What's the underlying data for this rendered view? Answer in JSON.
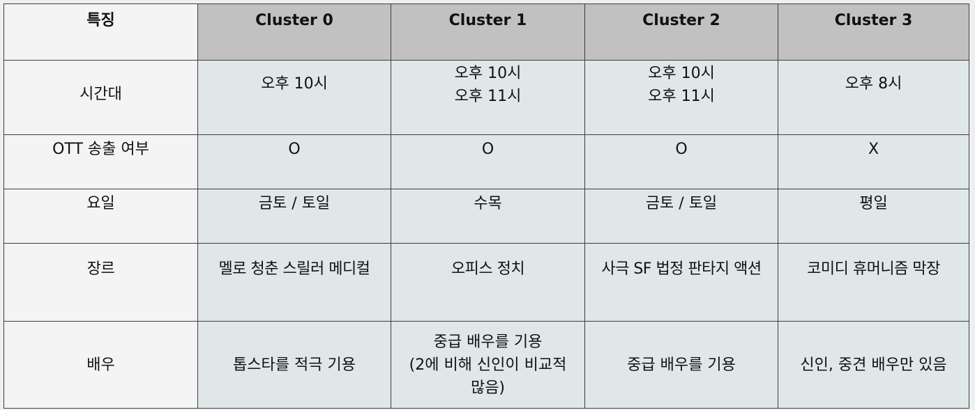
{
  "header": {
    "feature": "특징",
    "clusters": [
      "Cluster 0",
      "Cluster 1",
      "Cluster 2",
      "Cluster 3"
    ]
  },
  "rows": [
    {
      "label": "시간대",
      "cells": [
        [
          "오후 10시"
        ],
        [
          "오후 10시",
          "오후 11시"
        ],
        [
          "오후 10시",
          "오후 11시"
        ],
        [
          "오후 8시"
        ]
      ]
    },
    {
      "label": "OTT 송출 여부",
      "cells": [
        [
          "O"
        ],
        [
          "O"
        ],
        [
          "O"
        ],
        [
          "X"
        ]
      ]
    },
    {
      "label": "요일",
      "cells": [
        [
          "금토 / 토일"
        ],
        [
          "수목"
        ],
        [
          "금토 / 토일"
        ],
        [
          "평일"
        ]
      ]
    },
    {
      "label": "장르",
      "cells": [
        [
          "멜로 청춘 스릴러 메디컬"
        ],
        [
          "오피스 정치"
        ],
        [
          "사극 SF 법정 판타지 액션"
        ],
        [
          "코미디 휴머니즘 막장"
        ]
      ]
    },
    {
      "label": "배우",
      "cells": [
        [
          "톱스타를 적극 기용"
        ],
        [
          "중급 배우를 기용",
          "(2에 비해 신인이 비교적",
          "많음)"
        ],
        [
          "중급 배우를 기용"
        ],
        [
          "신인, 중견 배우만 있음"
        ]
      ]
    }
  ]
}
